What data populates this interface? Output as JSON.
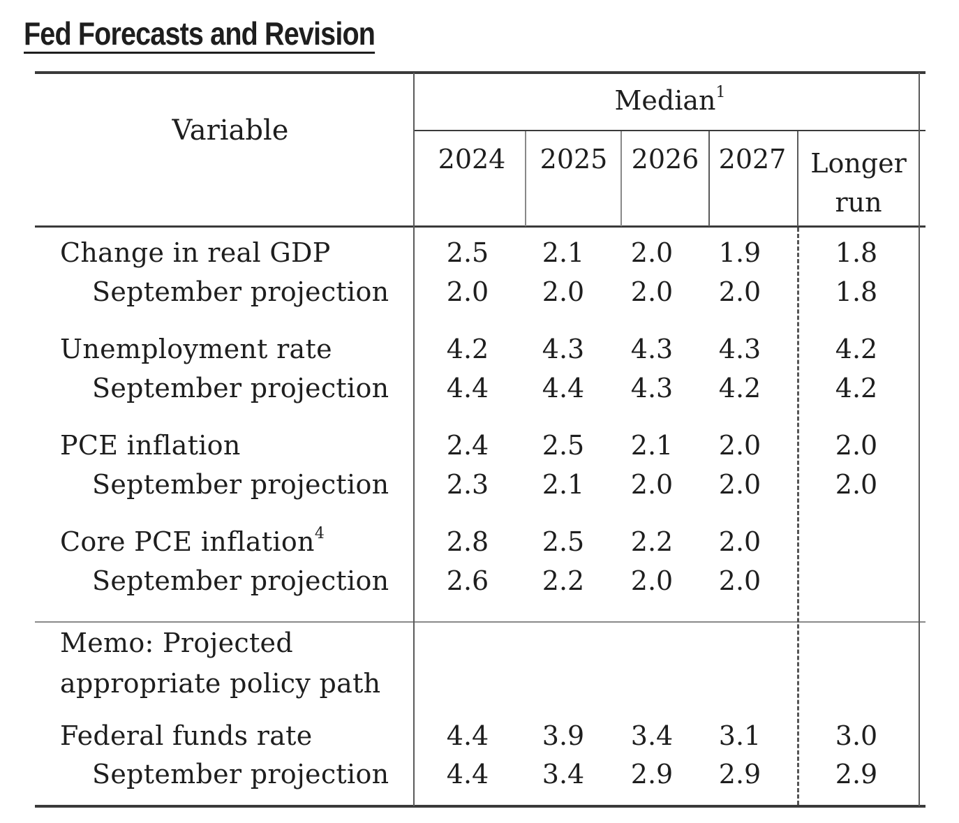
{
  "title": "Fed Forecasts and Revision",
  "header": {
    "variable": "Variable",
    "median": "Median",
    "median_note": "1",
    "years": [
      "2024",
      "2025",
      "2026",
      "2027"
    ],
    "longer_run_line1": "Longer",
    "longer_run_line2": "run"
  },
  "rows": [
    {
      "label": "Change in real GDP",
      "note": "",
      "values": [
        "2.5",
        "2.1",
        "2.0",
        "1.9",
        "1.8"
      ]
    },
    {
      "label": "September projection",
      "note": "",
      "values": [
        "2.0",
        "2.0",
        "2.0",
        "2.0",
        "1.8"
      ]
    },
    {
      "label": "Unemployment rate",
      "note": "",
      "values": [
        "4.2",
        "4.3",
        "4.3",
        "4.3",
        "4.2"
      ]
    },
    {
      "label": "September projection",
      "note": "",
      "values": [
        "4.4",
        "4.4",
        "4.3",
        "4.2",
        "4.2"
      ]
    },
    {
      "label": "PCE inflation",
      "note": "",
      "values": [
        "2.4",
        "2.5",
        "2.1",
        "2.0",
        "2.0"
      ]
    },
    {
      "label": "September projection",
      "note": "",
      "values": [
        "2.3",
        "2.1",
        "2.0",
        "2.0",
        "2.0"
      ]
    },
    {
      "label": "Core PCE inflation",
      "note": "4",
      "values": [
        "2.8",
        "2.5",
        "2.2",
        "2.0",
        ""
      ]
    },
    {
      "label": "September projection",
      "note": "",
      "values": [
        "2.6",
        "2.2",
        "2.0",
        "2.0",
        ""
      ]
    }
  ],
  "memo": {
    "line1": "Memo: Projected",
    "line2": "appropriate policy path"
  },
  "memo_rows": [
    {
      "label": "Federal funds rate",
      "values": [
        "4.4",
        "3.9",
        "3.4",
        "3.1",
        "3.0"
      ]
    },
    {
      "label": "September projection",
      "values": [
        "4.4",
        "3.4",
        "2.9",
        "2.9",
        "2.9"
      ]
    }
  ]
}
